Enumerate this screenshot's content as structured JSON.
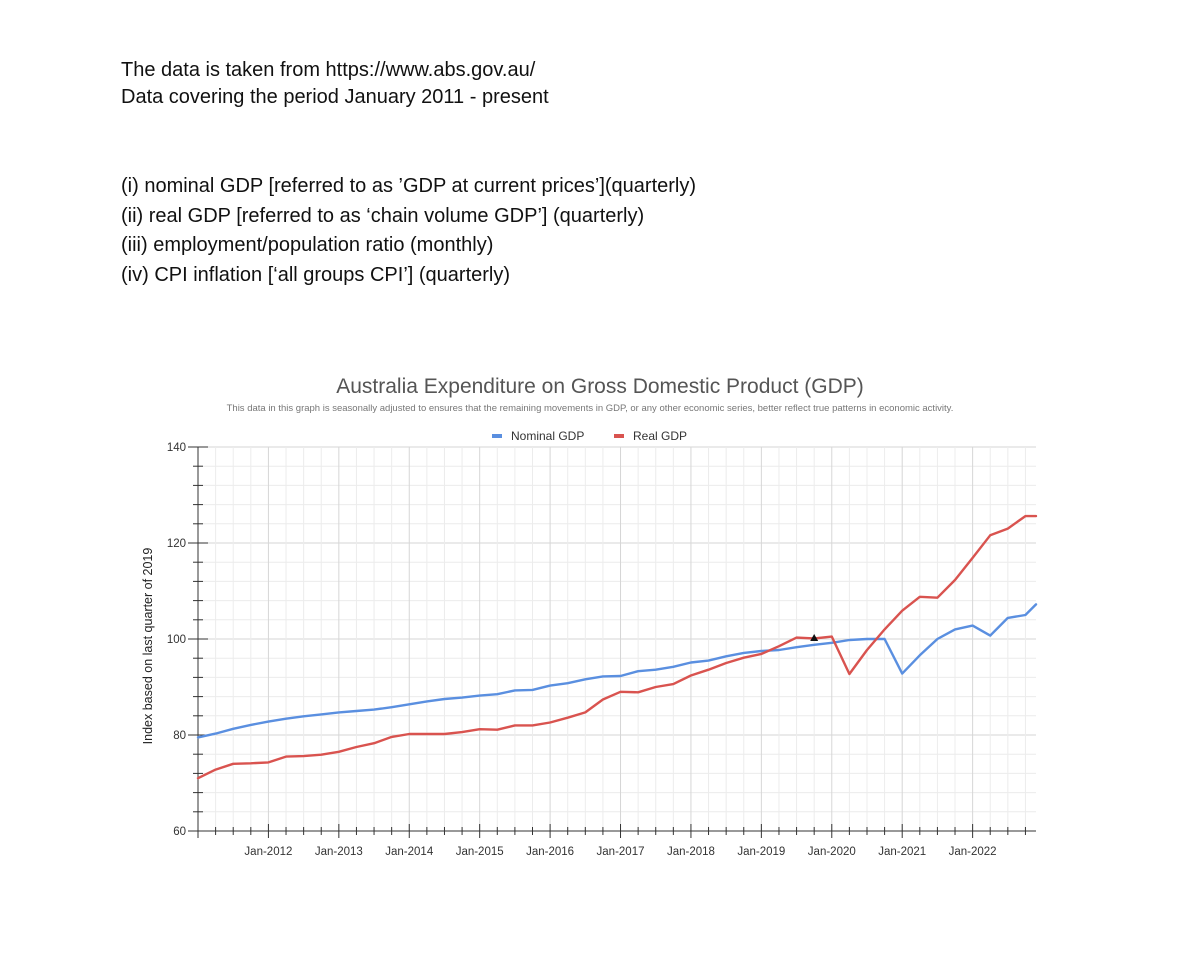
{
  "intro": {
    "line1": "The data is taken from https://www.abs.gov.au/",
    "line2": "Data covering the period January 2011 - present"
  },
  "items": [
    "(i) nominal GDP [referred to as ’GDP at current prices’](quarterly)",
    "(ii) real GDP [referred to as ‘chain volume GDP’] (quarterly)",
    "(iii) employment/population ratio (monthly)",
    "(iv) CPI inflation [‘all groups CPI’] (quarterly)"
  ],
  "chart_data": {
    "type": "line",
    "title": "Australia Expenditure on Gross Domestic Product (GDP)",
    "subtitle": "This data in this graph is seasonally adjusted to ensures that the remaining movements in GDP, or any other economic series, better reflect true patterns in economic activity.",
    "ylabel": "Index based on last quarter of 2019",
    "xlabel": "",
    "ylim": [
      60,
      140
    ],
    "yticks": [
      60,
      80,
      100,
      120,
      140
    ],
    "xlim": [
      2011.0,
      2022.9
    ],
    "xticks": [
      {
        "label": "Jan-2012",
        "value": 2012
      },
      {
        "label": "Jan-2013",
        "value": 2013
      },
      {
        "label": "Jan-2014",
        "value": 2014
      },
      {
        "label": "Jan-2015",
        "value": 2015
      },
      {
        "label": "Jan-2016",
        "value": 2016
      },
      {
        "label": "Jan-2017",
        "value": 2017
      },
      {
        "label": "Jan-2018",
        "value": 2018
      },
      {
        "label": "Jan-2019",
        "value": 2019
      },
      {
        "label": "Jan-2020",
        "value": 2020
      },
      {
        "label": "Jan-2021",
        "value": 2021
      },
      {
        "label": "Jan-2022",
        "value": 2022
      }
    ],
    "grid": true,
    "legend_position": "top-center",
    "x": [
      2011.0,
      2011.25,
      2011.5,
      2011.75,
      2012.0,
      2012.25,
      2012.5,
      2012.75,
      2013.0,
      2013.25,
      2013.5,
      2013.75,
      2014.0,
      2014.25,
      2014.5,
      2014.75,
      2015.0,
      2015.25,
      2015.5,
      2015.75,
      2016.0,
      2016.25,
      2016.5,
      2016.75,
      2017.0,
      2017.25,
      2017.5,
      2017.75,
      2018.0,
      2018.25,
      2018.5,
      2018.75,
      2019.0,
      2019.25,
      2019.5,
      2019.75,
      2020.0,
      2020.25,
      2020.5,
      2020.75,
      2021.0,
      2021.25,
      2021.5,
      2021.75,
      2022.0,
      2022.25,
      2022.5,
      2022.75,
      2022.9
    ],
    "series": [
      {
        "name": "Nominal GDP",
        "color": "#5a8fe0",
        "values": [
          79.5,
          80.3,
          81.3,
          82.1,
          82.8,
          83.4,
          83.9,
          84.3,
          84.7,
          85.0,
          85.3,
          85.8,
          86.4,
          87.0,
          87.5,
          87.8,
          88.2,
          88.5,
          89.3,
          89.4,
          90.3,
          90.8,
          91.6,
          92.2,
          92.3,
          93.3,
          93.6,
          94.2,
          95.1,
          95.5,
          96.4,
          97.1,
          97.5,
          97.7,
          98.3,
          98.8,
          99.2,
          99.8,
          100.0,
          100.0,
          92.8,
          96.6,
          100.0,
          102.0,
          102.8,
          100.7,
          104.4,
          105.0,
          107.2
        ]
      },
      {
        "name": "Real GDP",
        "color": "#d9534f",
        "values": [
          71.0,
          72.8,
          74.0,
          74.1,
          74.3,
          75.5,
          75.6,
          75.9,
          76.5,
          77.5,
          78.3,
          79.6,
          80.2,
          80.2,
          80.2,
          80.6,
          81.2,
          81.1,
          82.0,
          82.0,
          82.6,
          83.6,
          84.7,
          87.4,
          89.0,
          88.9,
          90.0,
          90.6,
          92.4,
          93.6,
          95.0,
          96.1,
          96.9,
          98.5,
          100.3,
          100.1,
          100.5,
          92.7,
          97.7,
          102.0,
          105.9,
          108.8,
          108.6,
          112.3,
          116.9,
          121.6,
          123.0,
          125.6,
          125.6
        ]
      }
    ],
    "annotation_marker": {
      "x": 2019.75,
      "y": 100
    }
  }
}
